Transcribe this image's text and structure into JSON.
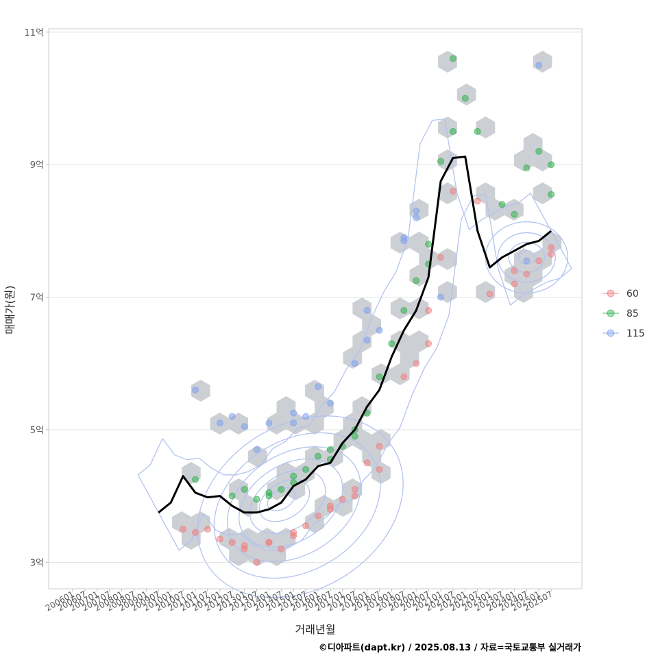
{
  "chart_data": {
    "type": "scatter",
    "xlabel": "거래년월",
    "ylabel": "매매가(원)",
    "x_ticks": [
      "200601",
      "200607",
      "200701",
      "200707",
      "200801",
      "200807",
      "200901",
      "200907",
      "201001",
      "201007",
      "201101",
      "201107",
      "201201",
      "201207",
      "201301",
      "201307",
      "201401",
      "201407",
      "201501",
      "201507",
      "201601",
      "201607",
      "201701",
      "201707",
      "201801",
      "201807",
      "201901",
      "201907",
      "202001",
      "202007",
      "202101",
      "202107",
      "202201",
      "202207",
      "202301",
      "202307",
      "202401",
      "202407",
      "202501",
      "202507"
    ],
    "y_ticks": [
      {
        "value": 3,
        "label": "3억"
      },
      {
        "value": 5,
        "label": "5억"
      },
      {
        "value": 7,
        "label": "7억"
      },
      {
        "value": 9,
        "label": "9억"
      },
      {
        "value": 11,
        "label": "11억"
      }
    ],
    "ylim": [
      2.6,
      11.05
    ],
    "grid": "horizontal",
    "legend_position": "right",
    "colors": {
      "60": "#f08080",
      "85": "#2fb34f",
      "115": "#7fa3ef",
      "hex": "#c3c7cd",
      "contour": "#b3c3ef",
      "line": "#000000"
    },
    "series": [
      {
        "name": "60",
        "color": "#f08080",
        "points": [
          [
            "201007",
            3.5
          ],
          [
            "201101",
            3.45
          ],
          [
            "201107",
            3.5
          ],
          [
            "201201",
            3.35
          ],
          [
            "201207",
            3.3
          ],
          [
            "201301",
            3.25
          ],
          [
            "201307",
            3.0
          ],
          [
            "201401",
            3.3
          ],
          [
            "201407",
            3.2
          ],
          [
            "201501",
            3.45
          ],
          [
            "201507",
            3.55
          ],
          [
            "201601",
            3.7
          ],
          [
            "201607",
            3.8
          ],
          [
            "201701",
            3.95
          ],
          [
            "201707",
            4.1
          ],
          [
            "201801",
            4.5
          ],
          [
            "201807",
            4.75
          ],
          [
            "201907",
            5.8
          ],
          [
            "202001",
            6.0
          ],
          [
            "202007",
            6.8
          ],
          [
            "202101",
            7.6
          ],
          [
            "202107",
            8.6
          ],
          [
            "202207",
            8.45
          ],
          [
            "202301",
            7.05
          ],
          [
            "202401",
            7.2
          ],
          [
            "202407",
            7.35
          ],
          [
            "202501",
            7.55
          ],
          [
            "202507",
            7.75
          ],
          [
            "201301",
            3.2
          ],
          [
            "201401",
            3.3
          ],
          [
            "201501",
            3.4
          ],
          [
            "201607",
            3.85
          ],
          [
            "201707",
            4.0
          ],
          [
            "201807",
            4.4
          ],
          [
            "202007",
            6.3
          ],
          [
            "202401",
            7.4
          ],
          [
            "202507",
            7.65
          ]
        ]
      },
      {
        "name": "85",
        "color": "#2fb34f",
        "points": [
          [
            "201101",
            4.25
          ],
          [
            "201207",
            4.0
          ],
          [
            "201301",
            4.1
          ],
          [
            "201307",
            3.95
          ],
          [
            "201401",
            4.05
          ],
          [
            "201407",
            4.1
          ],
          [
            "201501",
            4.2
          ],
          [
            "201507",
            4.4
          ],
          [
            "201601",
            4.6
          ],
          [
            "201607",
            4.55
          ],
          [
            "201701",
            4.75
          ],
          [
            "201707",
            5.0
          ],
          [
            "201801",
            5.25
          ],
          [
            "201807",
            5.8
          ],
          [
            "201901",
            6.3
          ],
          [
            "201907",
            6.8
          ],
          [
            "202001",
            7.25
          ],
          [
            "202007",
            7.8
          ],
          [
            "202101",
            9.05
          ],
          [
            "202107",
            9.5
          ],
          [
            "202201",
            10.0
          ],
          [
            "202207",
            9.5
          ],
          [
            "202307",
            8.4
          ],
          [
            "202401",
            8.25
          ],
          [
            "202407",
            8.95
          ],
          [
            "202501",
            9.2
          ],
          [
            "202507",
            8.55
          ],
          [
            "201401",
            4.0
          ],
          [
            "201501",
            4.3
          ],
          [
            "201607",
            4.7
          ],
          [
            "201707",
            4.9
          ],
          [
            "202007",
            7.5
          ],
          [
            "202107",
            10.6
          ],
          [
            "202507",
            9.0
          ]
        ]
      },
      {
        "name": "115",
        "color": "#7fa3ef",
        "points": [
          [
            "201101",
            5.6
          ],
          [
            "201201",
            5.1
          ],
          [
            "201207",
            5.2
          ],
          [
            "201307",
            4.7
          ],
          [
            "201401",
            5.1
          ],
          [
            "201501",
            5.25
          ],
          [
            "201507",
            5.2
          ],
          [
            "201601",
            5.65
          ],
          [
            "201607",
            5.4
          ],
          [
            "201707",
            6.0
          ],
          [
            "201801",
            6.8
          ],
          [
            "201807",
            6.5
          ],
          [
            "201907",
            7.9
          ],
          [
            "202001",
            8.3
          ],
          [
            "202101",
            7.0
          ],
          [
            "202407",
            7.55
          ],
          [
            "202501",
            10.5
          ],
          [
            "201301",
            5.05
          ],
          [
            "201501",
            5.1
          ],
          [
            "201801",
            6.35
          ],
          [
            "201907",
            7.85
          ],
          [
            "202001",
            8.2
          ]
        ]
      }
    ],
    "trend_line": [
      [
        "200907",
        3.75
      ],
      [
        "201001",
        3.9
      ],
      [
        "201007",
        4.3
      ],
      [
        "201101",
        4.05
      ],
      [
        "201107",
        3.98
      ],
      [
        "201201",
        4.0
      ],
      [
        "201207",
        3.85
      ],
      [
        "201301",
        3.75
      ],
      [
        "201307",
        3.75
      ],
      [
        "201401",
        3.8
      ],
      [
        "201407",
        3.9
      ],
      [
        "201501",
        4.15
      ],
      [
        "201507",
        4.25
      ],
      [
        "201601",
        4.45
      ],
      [
        "201607",
        4.5
      ],
      [
        "201701",
        4.8
      ],
      [
        "201707",
        5.0
      ],
      [
        "201801",
        5.35
      ],
      [
        "201807",
        5.6
      ],
      [
        "201901",
        6.1
      ],
      [
        "201907",
        6.5
      ],
      [
        "202001",
        6.8
      ],
      [
        "202007",
        7.3
      ],
      [
        "202101",
        8.75
      ],
      [
        "202107",
        9.1
      ],
      [
        "202201",
        9.12
      ],
      [
        "202207",
        8.0
      ],
      [
        "202301",
        7.45
      ],
      [
        "202307",
        7.6
      ],
      [
        "202401",
        7.7
      ],
      [
        "202407",
        7.8
      ],
      [
        "202501",
        7.85
      ],
      [
        "202507",
        8.0
      ]
    ]
  },
  "legend": {
    "items": [
      {
        "label": "60",
        "color": "#f08080"
      },
      {
        "label": "85",
        "color": "#2fb34f"
      },
      {
        "label": "115",
        "color": "#7fa3ef"
      }
    ]
  },
  "caption": "©디아파트(dapt.kr) / 2025.08.13 / 자료=국토교통부 실거래가"
}
